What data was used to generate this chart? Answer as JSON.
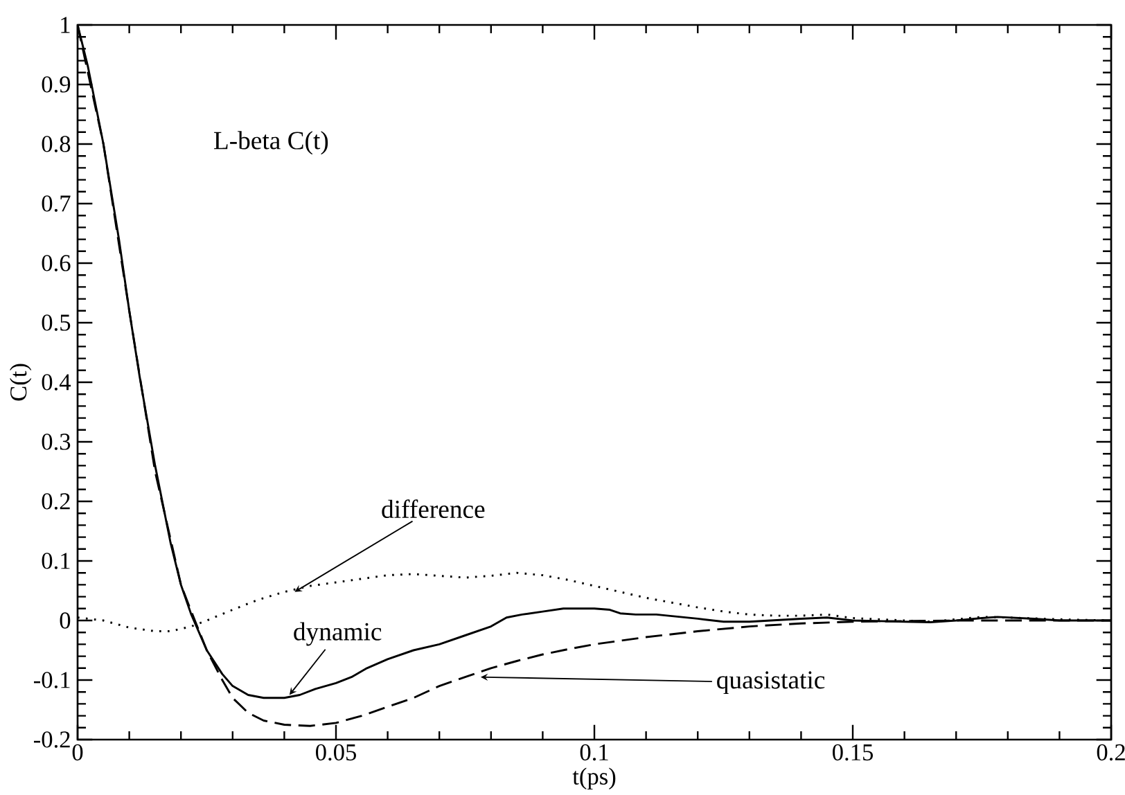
{
  "chart_data": {
    "type": "line",
    "xlabel": "t(ps)",
    "ylabel": "C(t)",
    "xlim": [
      0,
      0.2
    ],
    "ylim": [
      -0.2,
      1
    ],
    "xticks": [
      0,
      0.05,
      0.1,
      0.15,
      0.2
    ],
    "yticks": [
      -0.2,
      -0.1,
      0,
      0.1,
      0.2,
      0.3,
      0.4,
      0.5,
      0.6,
      0.7,
      0.8,
      0.9,
      1
    ],
    "marker": "none",
    "annotations": [
      "L-beta  C(t)",
      {
        "text": "difference",
        "x": 0.042,
        "y": 0.048
      },
      {
        "text": "dynamic",
        "x": 0.041,
        "y": -0.125
      },
      {
        "text": "quasistatic",
        "x": 0.078,
        "y": -0.095
      }
    ],
    "series": [
      {
        "color": "#000000",
        "line_style": "solid",
        "x": [
          0,
          0.002,
          0.005,
          0.008,
          0.01,
          0.012,
          0.015,
          0.018,
          0.02,
          0.022,
          0.025,
          0.028,
          0.03,
          0.033,
          0.036,
          0.04,
          0.043,
          0.046,
          0.05,
          0.053,
          0.056,
          0.06,
          0.065,
          0.07,
          0.075,
          0.08,
          0.083,
          0.086,
          0.09,
          0.094,
          0.1,
          0.103,
          0.105,
          0.108,
          0.112,
          0.12,
          0.125,
          0.13,
          0.14,
          0.145,
          0.15,
          0.16,
          0.165,
          0.17,
          0.175,
          0.178,
          0.185,
          0.19,
          0.2
        ],
        "values": [
          1,
          0.93,
          0.8,
          0.64,
          0.52,
          0.41,
          0.26,
          0.13,
          0.06,
          0.01,
          -0.05,
          -0.09,
          -0.11,
          -0.125,
          -0.13,
          -0.13,
          -0.125,
          -0.115,
          -0.105,
          -0.095,
          -0.08,
          -0.065,
          -0.05,
          -0.04,
          -0.025,
          -0.01,
          0.005,
          0.01,
          0.015,
          0.02,
          0.02,
          0.018,
          0.012,
          0.01,
          0.01,
          0.003,
          -0.002,
          -0.002,
          0.003,
          0.005,
          0,
          -0.002,
          -0.003,
          0,
          0.004,
          0.006,
          0.003,
          0,
          0
        ]
      },
      {
        "color": "#000000",
        "line_style": "dashed",
        "x": [
          0,
          0.005,
          0.01,
          0.015,
          0.02,
          0.022,
          0.025,
          0.028,
          0.03,
          0.033,
          0.036,
          0.04,
          0.045,
          0.05,
          0.055,
          0.06,
          0.065,
          0.07,
          0.075,
          0.08,
          0.085,
          0.09,
          0.095,
          0.1,
          0.11,
          0.12,
          0.13,
          0.14,
          0.15,
          0.17,
          0.2
        ],
        "values": [
          1,
          0.8,
          0.52,
          0.25,
          0.06,
          0.015,
          -0.05,
          -0.1,
          -0.13,
          -0.155,
          -0.168,
          -0.175,
          -0.177,
          -0.172,
          -0.16,
          -0.145,
          -0.13,
          -0.11,
          -0.095,
          -0.08,
          -0.068,
          -0.057,
          -0.048,
          -0.04,
          -0.028,
          -0.018,
          -0.01,
          -0.005,
          -0.002,
          0,
          0
        ]
      },
      {
        "color": "#000000",
        "line_style": "dotted",
        "x": [
          0,
          0.005,
          0.01,
          0.015,
          0.018,
          0.022,
          0.025,
          0.03,
          0.035,
          0.04,
          0.045,
          0.05,
          0.055,
          0.06,
          0.065,
          0.07,
          0.075,
          0.08,
          0.085,
          0.09,
          0.095,
          0.1,
          0.105,
          0.11,
          0.115,
          0.12,
          0.125,
          0.13,
          0.135,
          0.14,
          0.145,
          0.15,
          0.16,
          0.165,
          0.17,
          0.175,
          0.18,
          0.19,
          0.2
        ],
        "values": [
          0.005,
          0,
          -0.012,
          -0.018,
          -0.018,
          -0.01,
          0,
          0.018,
          0.035,
          0.048,
          0.058,
          0.064,
          0.07,
          0.076,
          0.078,
          0.075,
          0.072,
          0.075,
          0.08,
          0.076,
          0.068,
          0.058,
          0.048,
          0.038,
          0.03,
          0.022,
          0.015,
          0.01,
          0.008,
          0.008,
          0.01,
          0.004,
          0,
          -0.002,
          0.002,
          0.006,
          0.005,
          0.002,
          0
        ]
      }
    ]
  }
}
